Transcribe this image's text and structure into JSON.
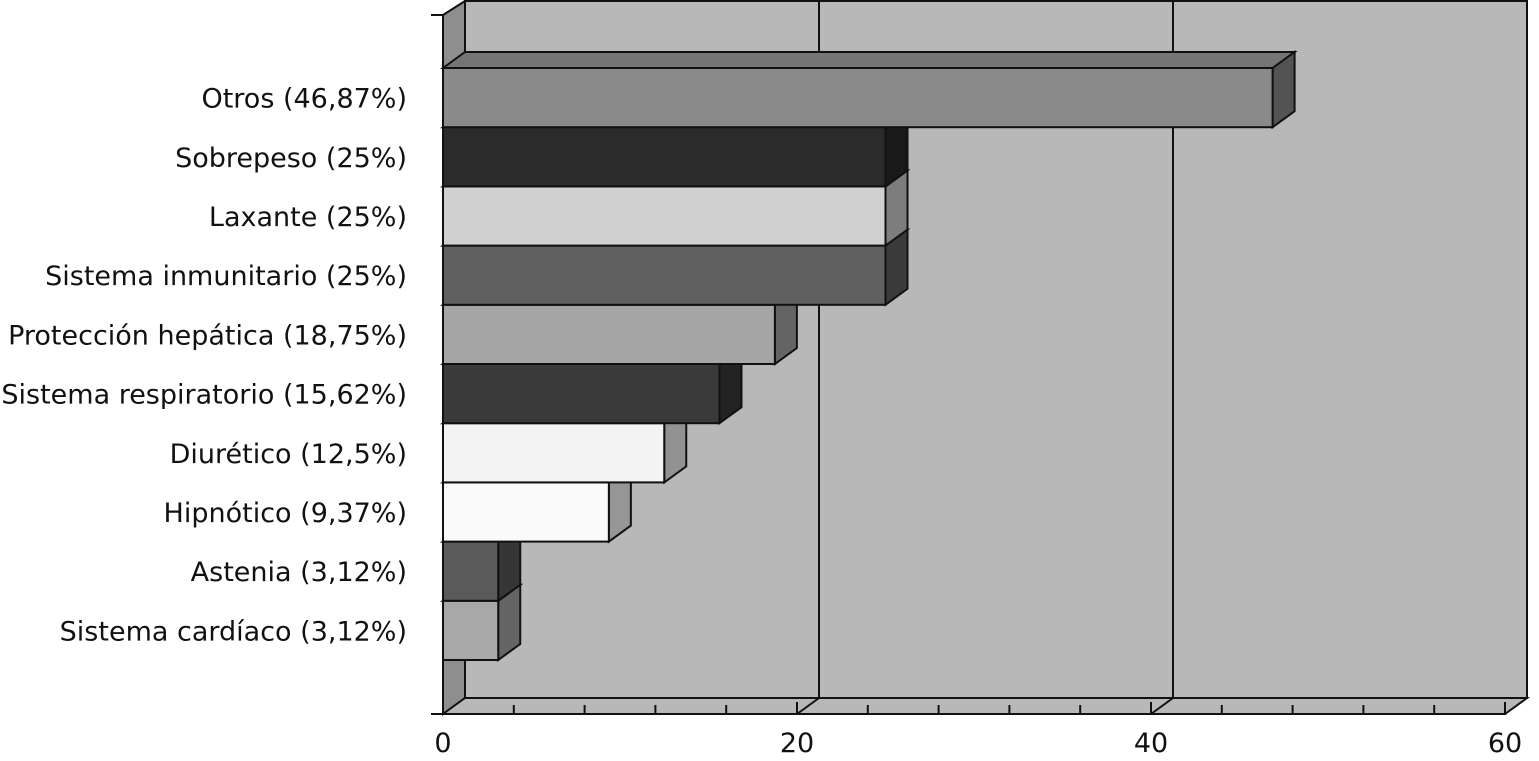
{
  "chart_data": {
    "type": "bar",
    "orientation": "horizontal",
    "style": "3d",
    "categories": [
      "Otros (46,87%)",
      "Sobrepeso (25%)",
      "Laxante (25%)",
      "Sistema inmunitario (25%)",
      "Protección hepática (18,75%)",
      "Sistema respiratorio (15,62%)",
      "Diurético (12,5%)",
      "Hipnótico (9,37%)",
      "Astenia (3,12%)",
      "Sistema cardíaco (3,12%)"
    ],
    "values": [
      46.87,
      25,
      25,
      25,
      18.75,
      15.62,
      12.5,
      9.37,
      3.12,
      3.12
    ],
    "bar_colors": [
      "#8a8a8a",
      "#2b2b2b",
      "#d0d0d0",
      "#606060",
      "#a6a6a6",
      "#3a3a3a",
      "#f3f3f3",
      "#fafafa",
      "#5a5a5a",
      "#a8a8a8"
    ],
    "title": "",
    "xlabel": "",
    "ylabel": "",
    "xlim": [
      0,
      60
    ],
    "xticks": [
      0,
      20,
      40,
      60
    ],
    "minor_ticks_per_major": 5,
    "grid": true,
    "legend": "none",
    "background_color": "#b8b8b8",
    "wall_color": "#8e8e8e"
  }
}
